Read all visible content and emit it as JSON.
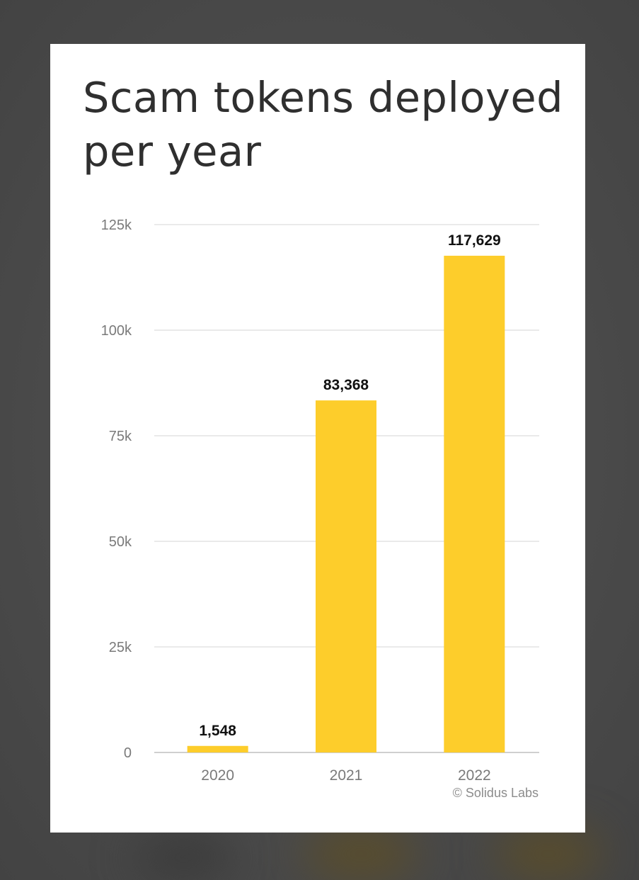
{
  "chart_data": {
    "type": "bar",
    "title": "Scam tokens deployed per year",
    "categories": [
      "2020",
      "2021",
      "2022"
    ],
    "values": [
      1548,
      83368,
      117629
    ],
    "value_labels": [
      "1,548",
      "83,368",
      "117,629"
    ],
    "yticks": [
      0,
      25000,
      50000,
      75000,
      100000,
      125000
    ],
    "ytick_labels": [
      "0",
      "25k",
      "50k",
      "75k",
      "100k",
      "125k"
    ],
    "ylim": [
      0,
      125000
    ],
    "grid": true,
    "xlabel": "",
    "ylabel": "",
    "credit": "© Solidus Labs",
    "colors": {
      "bar": "#fdcd2b",
      "grid": "#e3e3e3",
      "baseline": "#cfcfcf",
      "tick_text": "#7a7a7a",
      "value_text": "#111111"
    }
  }
}
